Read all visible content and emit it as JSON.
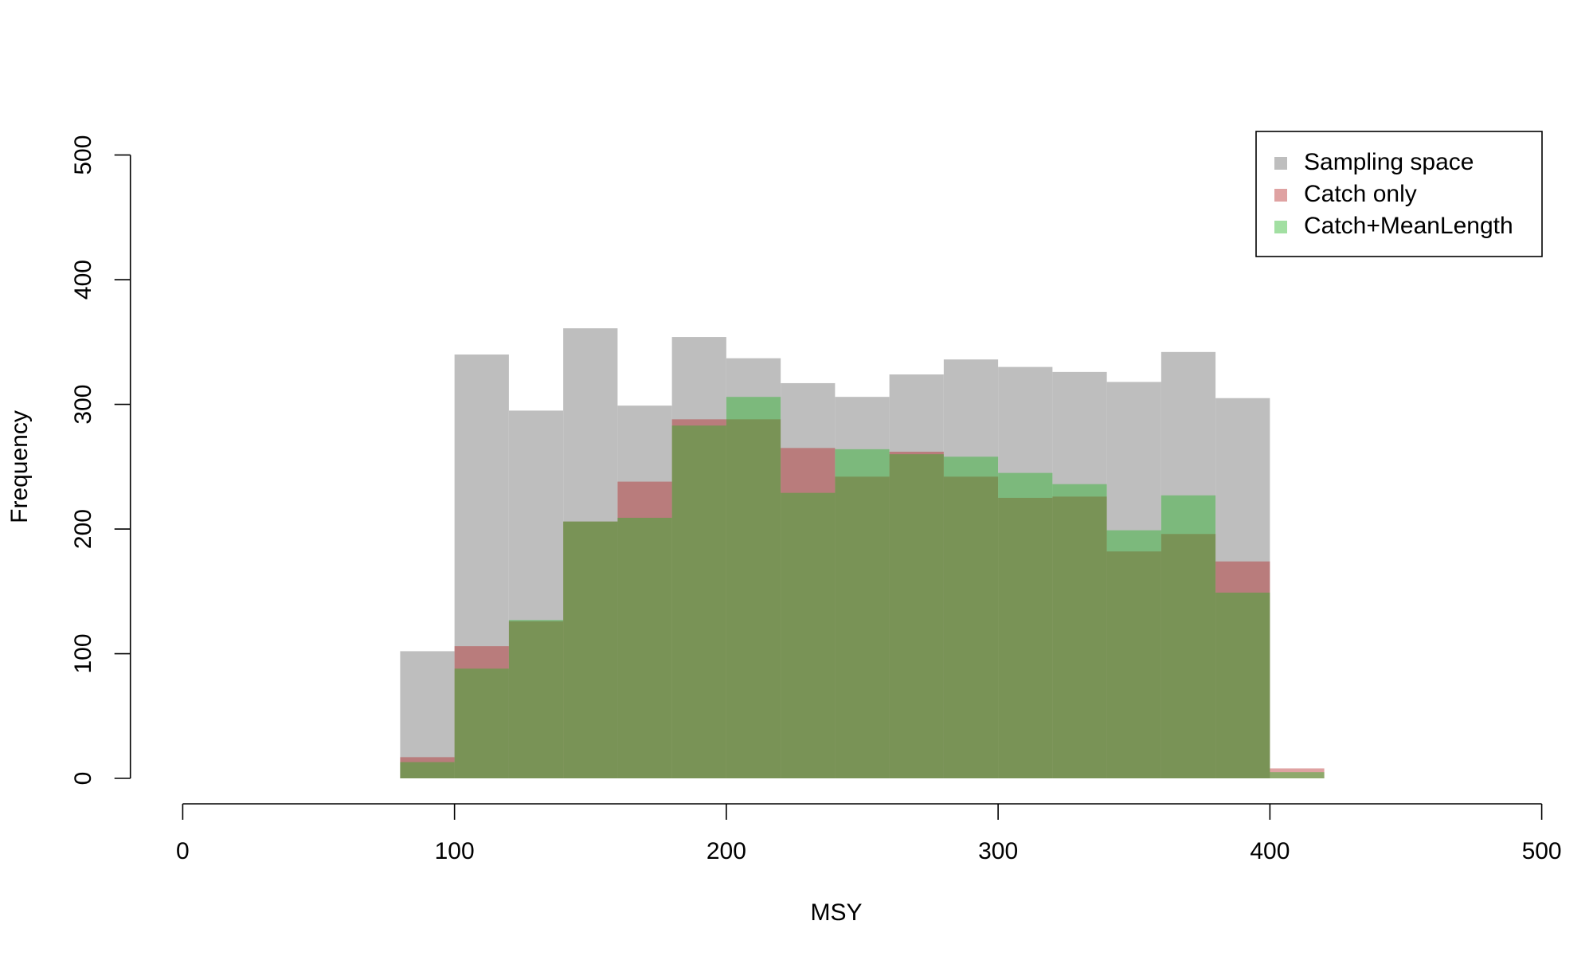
{
  "chart_data": {
    "type": "histogram",
    "x_label": "MSY",
    "y_label": "Frequency",
    "bins": [
      80,
      100,
      120,
      140,
      160,
      180,
      200,
      220,
      240,
      260,
      280,
      300,
      320,
      340,
      360,
      380,
      400,
      420
    ],
    "series": [
      {
        "name": "Sampling space",
        "color": "#bebebe",
        "values": [
          102,
          340,
          295,
          361,
          299,
          354,
          337,
          317,
          306,
          324,
          336,
          330,
          326,
          318,
          342,
          305,
          0
        ]
      },
      {
        "name": "Catch only",
        "color": "rgba(178,34,34,0.42)",
        "values": [
          17,
          106,
          126,
          206,
          238,
          288,
          288,
          265,
          242,
          262,
          242,
          225,
          226,
          182,
          196,
          174,
          8
        ]
      },
      {
        "name": "Catch+MeanLength",
        "color": "rgba(34,178,34,0.42)",
        "values": [
          13,
          88,
          127,
          206,
          209,
          283,
          306,
          229,
          264,
          260,
          258,
          245,
          236,
          199,
          227,
          149,
          5
        ]
      }
    ],
    "xlim": [
      0,
      500
    ],
    "xticks": [
      0,
      100,
      200,
      300,
      400,
      500
    ],
    "ylim": [
      0,
      500
    ],
    "yticks": [
      0,
      100,
      200,
      300,
      400,
      500
    ],
    "legend": "top-right"
  }
}
